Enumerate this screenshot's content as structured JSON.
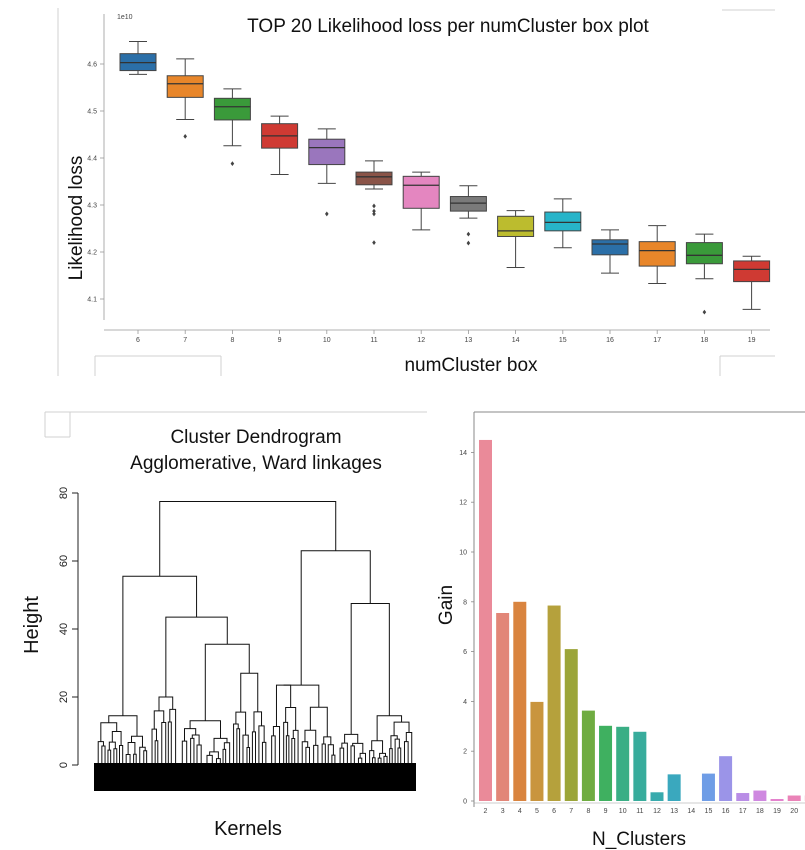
{
  "chart_data": [
    {
      "type": "box",
      "title": "TOP 20 Likelihood loss per numCluster box plot",
      "xlabel": "numCluster box",
      "ylabel": "Likelihood loss",
      "y_multiplier": "1e10",
      "ylim": [
        4.06,
        4.67
      ],
      "yticks": [
        "4.1",
        "4.2",
        "4.3",
        "4.4",
        "4.5",
        "4.6"
      ],
      "categories": [
        "6",
        "7",
        "8",
        "9",
        "10",
        "11",
        "12",
        "13",
        "14",
        "15",
        "16",
        "17",
        "18",
        "19"
      ],
      "colors": [
        "#2b6fa8",
        "#e8862a",
        "#3a9a3a",
        "#cf3a33",
        "#9a76bd",
        "#8a5448",
        "#e486c0",
        "#7a7a7a",
        "#bcbc2e",
        "#27b4c9",
        "#2b6fa8",
        "#e8862a",
        "#3a9a3a",
        "#cf3a33"
      ],
      "boxes": [
        {
          "min": 4.578,
          "q1": 4.586,
          "median": 4.603,
          "q3": 4.622,
          "max": 4.648,
          "outliers": []
        },
        {
          "min": 4.482,
          "q1": 4.529,
          "median": 4.558,
          "q3": 4.575,
          "max": 4.611,
          "outliers": [
            4.446
          ]
        },
        {
          "min": 4.426,
          "q1": 4.481,
          "median": 4.509,
          "q3": 4.527,
          "max": 4.547,
          "outliers": [
            4.388
          ]
        },
        {
          "min": 4.365,
          "q1": 4.421,
          "median": 4.447,
          "q3": 4.473,
          "max": 4.489,
          "outliers": []
        },
        {
          "min": 4.346,
          "q1": 4.386,
          "median": 4.422,
          "q3": 4.44,
          "max": 4.462,
          "outliers": [
            4.281
          ]
        },
        {
          "min": 4.334,
          "q1": 4.343,
          "median": 4.36,
          "q3": 4.37,
          "max": 4.394,
          "outliers": [
            4.298,
            4.287,
            4.281,
            4.22
          ]
        },
        {
          "min": 4.247,
          "q1": 4.293,
          "median": 4.342,
          "q3": 4.361,
          "max": 4.37,
          "outliers": []
        },
        {
          "min": 4.272,
          "q1": 4.287,
          "median": 4.304,
          "q3": 4.318,
          "max": 4.341,
          "outliers": [
            4.238,
            4.219
          ]
        },
        {
          "min": 4.167,
          "q1": 4.233,
          "median": 4.245,
          "q3": 4.276,
          "max": 4.288,
          "outliers": []
        },
        {
          "min": 4.209,
          "q1": 4.245,
          "median": 4.263,
          "q3": 4.285,
          "max": 4.313,
          "outliers": []
        },
        {
          "min": 4.155,
          "q1": 4.194,
          "median": 4.217,
          "q3": 4.226,
          "max": 4.247,
          "outliers": []
        },
        {
          "min": 4.133,
          "q1": 4.17,
          "median": 4.203,
          "q3": 4.222,
          "max": 4.256,
          "outliers": []
        },
        {
          "min": 4.143,
          "q1": 4.175,
          "median": 4.193,
          "q3": 4.22,
          "max": 4.238,
          "outliers": [
            4.072
          ]
        },
        {
          "min": 4.078,
          "q1": 4.137,
          "median": 4.163,
          "q3": 4.181,
          "max": 4.191,
          "outliers": []
        }
      ]
    },
    {
      "type": "dendrogram",
      "title_line1": "Cluster Dendrogram",
      "title_line2": "Agglomerative, Ward linkages",
      "xlabel": "Kernels",
      "ylabel": "Height",
      "ylim": [
        0,
        80
      ],
      "yticks": [
        "0",
        "20",
        "40",
        "60",
        "80"
      ],
      "top_merges": [
        {
          "height": 77.5,
          "children": [
            "left",
            "right"
          ]
        },
        {
          "name": "left",
          "height": 55.5
        },
        {
          "name": "right",
          "height": 63
        },
        {
          "name": "left-right",
          "height": 43.5
        },
        {
          "name": "left-right-right",
          "height": 35.5
        },
        {
          "name": "right-right",
          "height": 47.5
        },
        {
          "name": "right-left",
          "height": 23.5
        },
        {
          "name": "left-left",
          "height": 14.5
        }
      ]
    },
    {
      "type": "bar",
      "xlabel": "N_Clusters",
      "ylabel": "Gain",
      "ylim": [
        0,
        14.8
      ],
      "yticks": [
        "0",
        "2",
        "4",
        "6",
        "8",
        "10",
        "12",
        "14"
      ],
      "categories": [
        "2",
        "3",
        "4",
        "5",
        "6",
        "7",
        "8",
        "9",
        "10",
        "11",
        "12",
        "13",
        "14",
        "15",
        "16",
        "17",
        "18",
        "19",
        "20",
        "2"
      ],
      "values": [
        14.5,
        7.55,
        8.0,
        3.98,
        7.85,
        6.1,
        3.63,
        3.02,
        2.98,
        2.78,
        0.35,
        1.07,
        0,
        1.1,
        1.8,
        0.32,
        0.42,
        0.08,
        0.22,
        0.22
      ],
      "colors": [
        "#ea8a99",
        "#e28678",
        "#d9843f",
        "#c9953e",
        "#b5a13c",
        "#9ba539",
        "#6fac41",
        "#3fb060",
        "#3aae85",
        "#38ac9c",
        "#38aaad",
        "#3aa8be",
        "#3fa3d2",
        "#6f9de6",
        "#9b94e8",
        "#b98de6",
        "#cf88e0",
        "#e482cd",
        "#ea83b8",
        "#ec86a5"
      ]
    }
  ]
}
